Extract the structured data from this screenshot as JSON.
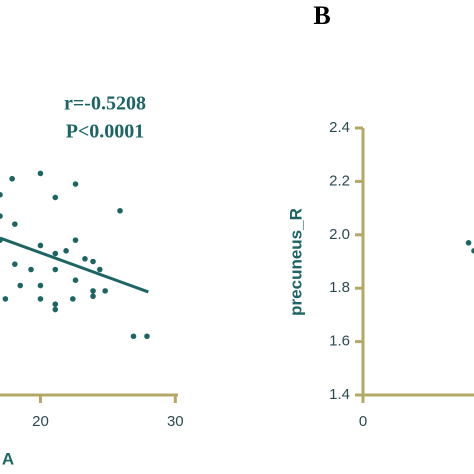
{
  "chart_data": [
    {
      "type": "scatter",
      "x_label": "A",
      "annotations": [
        "r=-0.5208",
        "P<0.0001"
      ],
      "xlim": [
        17,
        30.2
      ],
      "xticks": [
        20,
        30
      ],
      "ylim": [
        1.4,
        2.4
      ],
      "color": "#1d6565",
      "axis_color": "#b3a866",
      "series": [
        {
          "name": null,
          "color": "#1d6565",
          "x": [
            17.9,
            20,
            17,
            21.1,
            22.6,
            25.9,
            17,
            18.1,
            17,
            20,
            21.1,
            21.9,
            22.6,
            23.3,
            23.9,
            24.4,
            18.1,
            19.3,
            21.1,
            18.5,
            20,
            22.6,
            23.9,
            23.9,
            24.8,
            21.1,
            21.1,
            20,
            22.4,
            26.9,
            27.9,
            17.4
          ],
          "y": [
            2.21,
            2.23,
            2.15,
            2.14,
            2.19,
            2.09,
            2.07,
            2.04,
            1.98,
            1.96,
            1.93,
            1.94,
            1.98,
            1.91,
            1.9,
            1.87,
            1.89,
            1.87,
            1.87,
            1.81,
            1.81,
            1.83,
            1.79,
            1.77,
            1.79,
            1.74,
            1.72,
            1.76,
            1.76,
            1.62,
            1.62,
            1.76
          ]
        }
      ],
      "fit_line": {
        "x": [
          17,
          28
        ],
        "y": [
          1.988,
          1.786
        ]
      }
    },
    {
      "type": "scatter",
      "title": "B",
      "y_label": "precuneus_R",
      "xlim": [
        0,
        8.2
      ],
      "xticks": [
        0
      ],
      "ylim": [
        1.4,
        2.4
      ],
      "yticks": [
        {
          "value": 1.4,
          "label": "1.4"
        },
        {
          "value": 1.6,
          "label": "1.6"
        },
        {
          "value": 1.8,
          "label": "1.8"
        },
        {
          "value": 2.0,
          "label": "2.0"
        },
        {
          "value": 2.2,
          "label": "2.2"
        },
        {
          "value": 2.4,
          "label": "2.4"
        }
      ],
      "color": "#1d6565",
      "axis_color": "#b3a866",
      "series": [
        {
          "name": null,
          "color": "#1d6565",
          "x": [
            7.8,
            8.2
          ],
          "y": [
            1.97,
            1.94
          ]
        }
      ]
    }
  ]
}
